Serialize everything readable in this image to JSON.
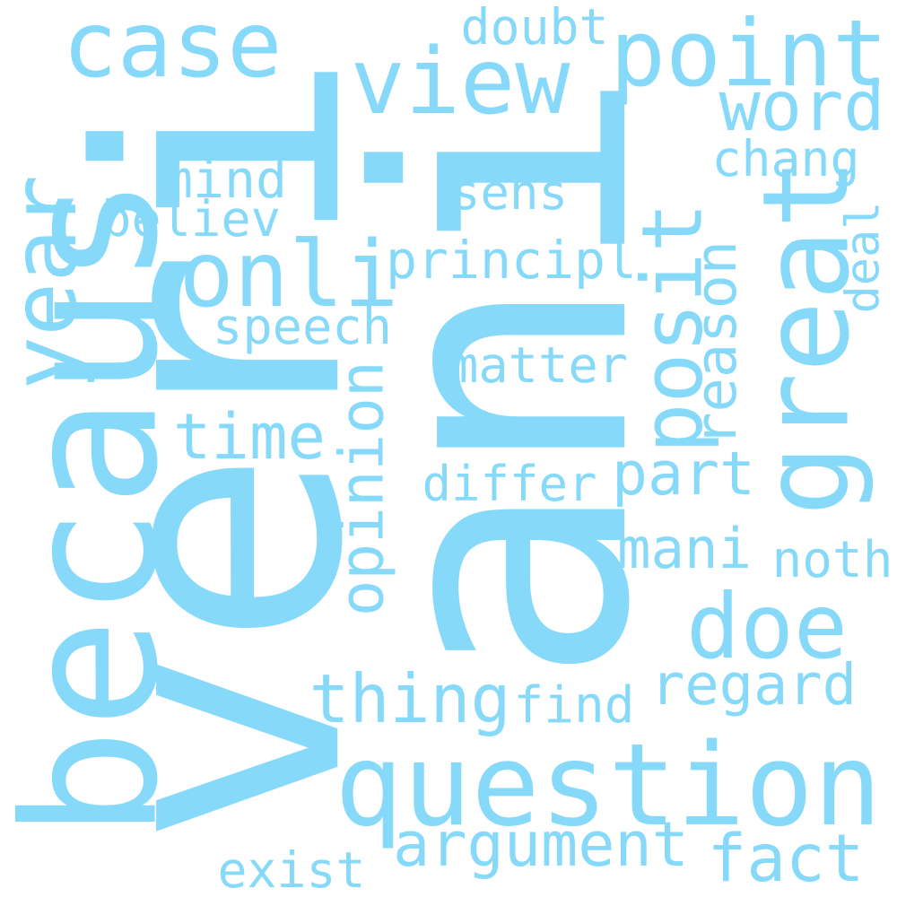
{
  "word_cloud": {
    "background_color": "#ffffff",
    "text_color": "#87d9f9",
    "words": [
      "veri",
      "ani",
      "question",
      "becaus",
      "great",
      "point",
      "posit",
      "view",
      "case",
      "year",
      "doe",
      "onli",
      "thing",
      "argument",
      "fact",
      "word",
      "regard",
      "time",
      "opinion",
      "part",
      "mani",
      "matter",
      "principl",
      "speech",
      "noth",
      "chang",
      "differ",
      "exist",
      "believ",
      "mind",
      "reason",
      "find",
      "sens",
      "doubt",
      "deal"
    ]
  }
}
